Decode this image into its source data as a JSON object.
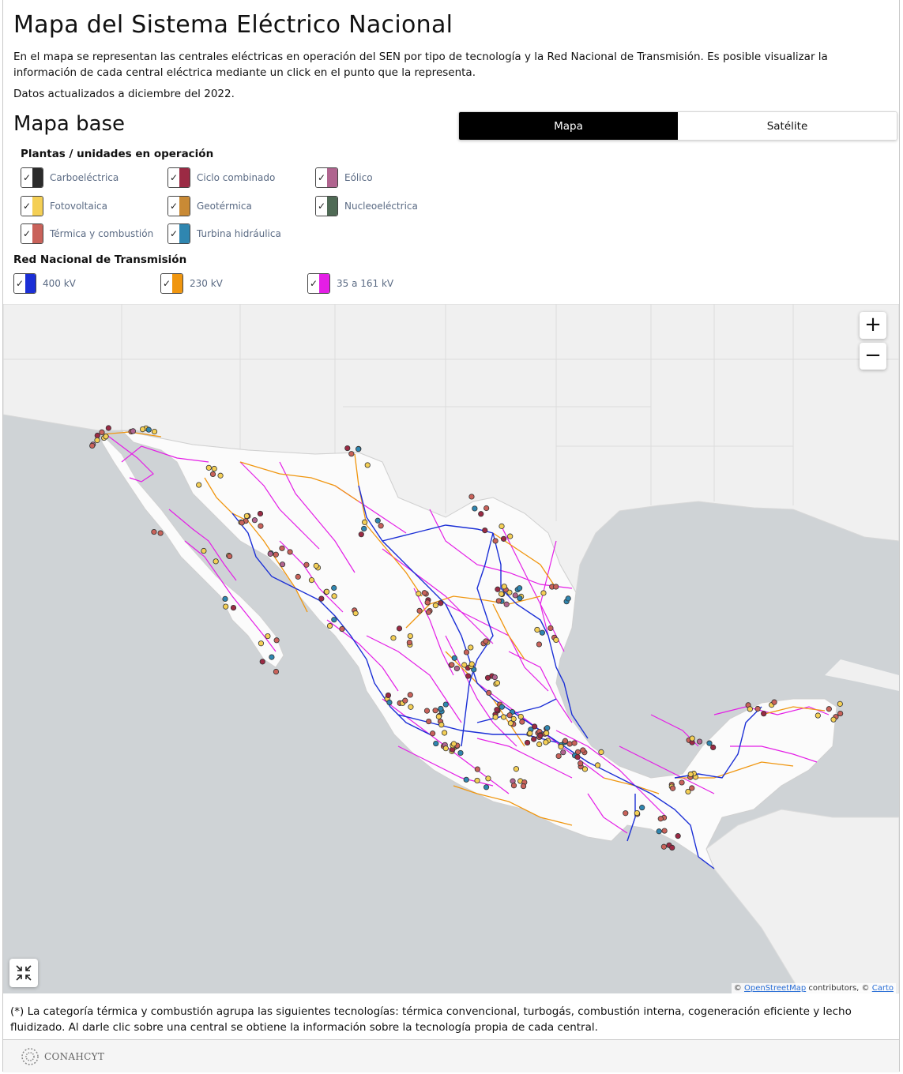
{
  "title": "Mapa del Sistema Eléctrico Nacional",
  "description": "En el mapa se representan las centrales eléctricas en operación del SEN por tipo de tecnología y la Red Nacional de Transmisión. Es posible visualizar la información de cada central eléctrica mediante un click en el punto que la representa.",
  "updated": "Datos actualizados a diciembre del 2022.",
  "subtitle": "Mapa base",
  "basemap_toggle": {
    "map_label": "Mapa",
    "satellite_label": "Satélite",
    "selected": "Mapa"
  },
  "plants_legend": {
    "title": "Plantas / unidades en operación",
    "items": [
      {
        "label": "Carboeléctrica",
        "color": "#2b2b2b",
        "checked": true
      },
      {
        "label": "Ciclo combinado",
        "color": "#9b2a44",
        "checked": true
      },
      {
        "label": "Eólico",
        "color": "#b0648f",
        "checked": true
      },
      {
        "label": "Fotovoltaica",
        "color": "#f4cf55",
        "checked": true
      },
      {
        "label": "Geotérmica",
        "color": "#c98a35",
        "checked": true
      },
      {
        "label": "Nucleoeléctrica",
        "color": "#4f6a55",
        "checked": true
      },
      {
        "label": "Térmica y combustión",
        "color": "#c9625a",
        "checked": true
      },
      {
        "label": "Turbina hidráulica",
        "color": "#2f86b0",
        "checked": true
      }
    ]
  },
  "grid_legend": {
    "title": "Red Nacional de Transmisión",
    "items": [
      {
        "label": "400 kV",
        "color": "#1b2fd6",
        "checked": true
      },
      {
        "label": "230 kV",
        "color": "#f0960f",
        "checked": true
      },
      {
        "label": "35 a 161 kV",
        "color": "#e41ee6",
        "checked": true
      }
    ]
  },
  "map_controls": {
    "zoom_in": "+",
    "zoom_out": "−"
  },
  "attribution": {
    "prefix": "©",
    "osm": "OpenStreetMap",
    "mid": "contributors, ©",
    "carto": "Carto"
  },
  "footnote": "(*) La categoría térmica y combustión agrupa las siguientes tecnologías: térmica convencional, turbogás, combustión interna, cogeneración eficiente y lecho fluidizado. Al darle clic sobre una central se obtiene la información sobre la tecnología propia de cada central.",
  "footer": {
    "logo_text": "CONAHCYT"
  }
}
